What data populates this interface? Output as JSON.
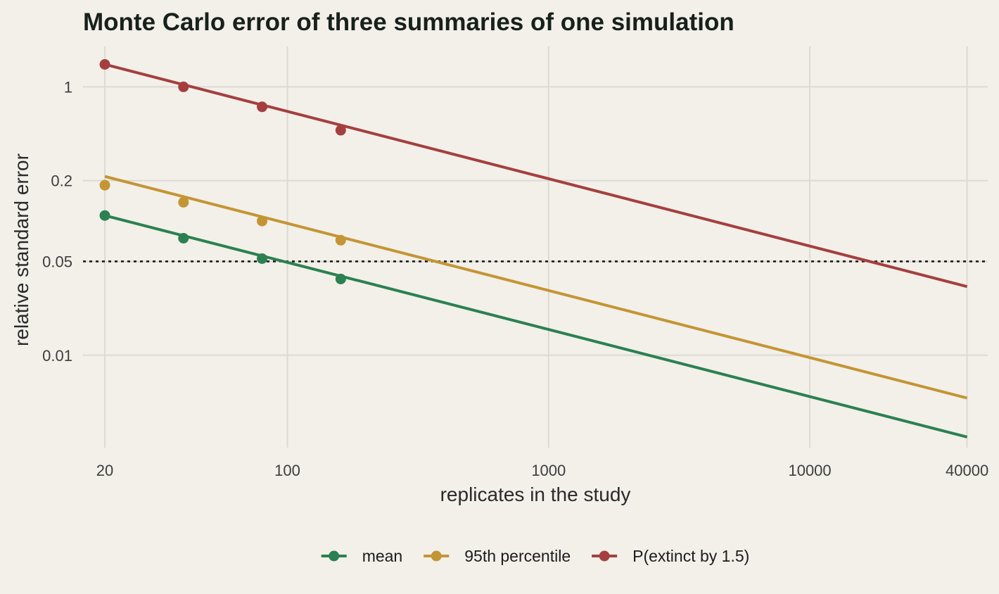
{
  "chart_data": {
    "type": "line",
    "title": "Monte Carlo error of three summaries of one simulation",
    "xlabel": "replicates in the study",
    "ylabel": "relative standard error",
    "xscale": "log",
    "yscale": "log",
    "xlim": [
      16.5,
      48000
    ],
    "ylim": [
      0.00205,
      2.0
    ],
    "x_ticks": [
      20,
      100,
      1000,
      10000,
      40000
    ],
    "x_tick_labels": [
      "20",
      "100",
      "1000",
      "10000",
      "40000"
    ],
    "y_ticks": [
      0.01,
      0.05,
      0.2,
      1
    ],
    "y_tick_labels": [
      "0.01",
      "0.05",
      "0.2",
      "1"
    ],
    "grid": true,
    "legend_position": "bottom",
    "reference_line": {
      "y": 0.05,
      "style": "dotted"
    },
    "series": [
      {
        "name": "mean",
        "color": "#2c8051",
        "line": {
          "x": [
            20,
            40000
          ],
          "y": [
            0.11,
            0.00246
          ]
        },
        "points": {
          "x": [
            20,
            40,
            80,
            160
          ],
          "y": [
            0.11,
            0.0745,
            0.0525,
            0.037
          ]
        }
      },
      {
        "name": "95th percentile",
        "color": "#c49535",
        "line": {
          "x": [
            20,
            40000
          ],
          "y": [
            0.215,
            0.0048
          ]
        },
        "points": {
          "x": [
            20,
            40,
            80,
            160
          ],
          "y": [
            0.185,
            0.138,
            0.1,
            0.072
          ]
        }
      },
      {
        "name": "P(extinct by 1.5)",
        "color": "#a53f3f",
        "line": {
          "x": [
            20,
            40000
          ],
          "y": [
            1.47,
            0.0325
          ]
        },
        "points": {
          "x": [
            20,
            40,
            80,
            160
          ],
          "y": [
            1.47,
            1.0,
            0.71,
            0.475
          ]
        }
      }
    ]
  }
}
